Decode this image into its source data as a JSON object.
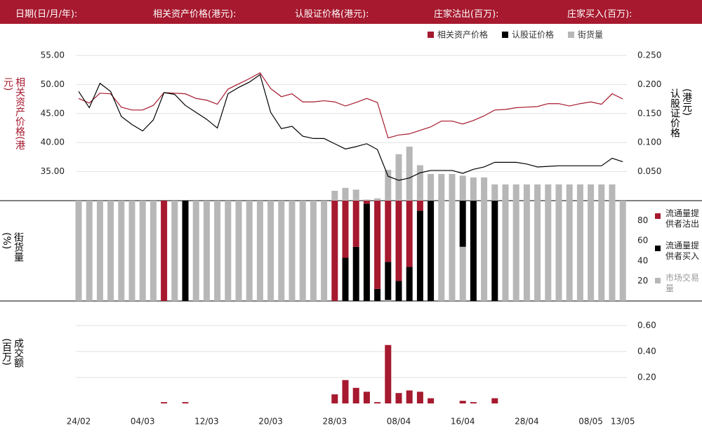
{
  "header": {
    "labels": [
      "日期(日/月/年):",
      "相关资产价格(港元):",
      "认股证价格(港元):",
      "庄家沽出(百万):",
      "庄家买入(百万):"
    ]
  },
  "chart_data": [
    {
      "type": "line",
      "ylabel": "相关资产价格(港元)",
      "y2label": "认股证价格(港元)",
      "legend": "top-right",
      "grid": true,
      "ylim": [
        30,
        55
      ],
      "yticks": [
        {
          "value": 35,
          "label": "35.00"
        },
        {
          "value": 40,
          "label": "40.00"
        },
        {
          "value": 45,
          "label": "45.00"
        },
        {
          "value": 50,
          "label": "50.00"
        },
        {
          "value": 55,
          "label": "55.00"
        }
      ],
      "y2lim": [
        0,
        0.25
      ],
      "y2ticks": [
        {
          "value": 0.05,
          "label": "0.050"
        },
        {
          "value": 0.1,
          "label": "0.100"
        },
        {
          "value": 0.15,
          "label": "0.150"
        },
        {
          "value": 0.2,
          "label": "0.200"
        },
        {
          "value": 0.25,
          "label": "0.250"
        }
      ],
      "series": [
        {
          "name": "相关资产价格",
          "color": "#a6192e",
          "values": [
            47.6,
            46.8,
            48.5,
            48.4,
            46.1,
            45.6,
            45.6,
            46.4,
            48.6,
            48.5,
            48.4,
            47.6,
            47.3,
            46.6,
            49.2,
            50.1,
            51.0,
            52.0,
            49.3,
            47.9,
            48.4,
            47.0,
            47.0,
            47.2,
            47.0,
            46.3,
            46.9,
            47.6,
            46.9,
            40.8,
            41.3,
            41.5,
            42.1,
            42.7,
            43.7,
            43.7,
            43.2,
            43.8,
            44.6,
            45.6,
            45.7,
            46.0,
            46.1,
            46.2,
            46.7,
            46.7,
            46.3,
            46.7,
            47.0,
            46.6,
            48.4,
            47.5
          ]
        },
        {
          "name": "认股证价格",
          "color": "#000000",
          "axis": "y2",
          "values": [
            0.188,
            0.16,
            0.202,
            0.188,
            0.145,
            0.131,
            0.12,
            0.139,
            0.186,
            0.183,
            0.164,
            0.152,
            0.14,
            0.125,
            0.184,
            0.195,
            0.204,
            0.217,
            0.152,
            0.124,
            0.128,
            0.111,
            0.107,
            0.107,
            0.098,
            0.089,
            0.093,
            0.098,
            0.088,
            0.042,
            0.035,
            0.039,
            0.048,
            0.052,
            0.052,
            0.052,
            0.047,
            0.054,
            0.058,
            0.066,
            0.066,
            0.066,
            0.063,
            0.058,
            0.059,
            0.06,
            0.06,
            0.06,
            0.06,
            0.06,
            0.073,
            0.067
          ]
        },
        {
          "name": "街货量",
          "color": "#b7b7b7",
          "type": "bar",
          "axis": "y2",
          "values": [
            null,
            null,
            null,
            null,
            null,
            null,
            null,
            null,
            null,
            null,
            null,
            null,
            null,
            null,
            null,
            null,
            null,
            null,
            null,
            null,
            null,
            null,
            null,
            null,
            0.017,
            0.022,
            0.019,
            0.002,
            0.004,
            0.053,
            0.08,
            0.093,
            0.061,
            0.046,
            0.046,
            0.046,
            0.043,
            0.04,
            0.04,
            0.028,
            0.028,
            0.028,
            0.028,
            0.028,
            0.028,
            0.028,
            0.028,
            0.028,
            0.028,
            0.028,
            0.028,
            null
          ]
        }
      ]
    },
    {
      "type": "stacked_bar",
      "ylabel": "街货量(%)",
      "legend": "right",
      "y2lim": [
        0,
        100
      ],
      "y2ticks": [
        20,
        40,
        60,
        80
      ],
      "series": [
        {
          "name": "流通量提供者沽出",
          "color": "#a6192e",
          "values": [
            0,
            0,
            0,
            0,
            0,
            0,
            0,
            0,
            100,
            0,
            0,
            0,
            0,
            0,
            0,
            0,
            0,
            0,
            0,
            0,
            0,
            0,
            0,
            0,
            100,
            57,
            46,
            3,
            88,
            61,
            80,
            66,
            10,
            0,
            0,
            0,
            0,
            0,
            0,
            0,
            0,
            0,
            0,
            0,
            0,
            0,
            0,
            0,
            0,
            0,
            0,
            0
          ]
        },
        {
          "name": "流通量提供者买入",
          "color": "#000000",
          "values": [
            0,
            0,
            0,
            0,
            0,
            0,
            0,
            0,
            0,
            0,
            100,
            0,
            0,
            0,
            0,
            0,
            0,
            0,
            0,
            0,
            0,
            0,
            0,
            0,
            0,
            43,
            54,
            97,
            12,
            38,
            20,
            34,
            90,
            100,
            0,
            0,
            46,
            100,
            0,
            100,
            0,
            0,
            0,
            0,
            0,
            0,
            0,
            0,
            0,
            0,
            0,
            0
          ]
        },
        {
          "name": "市场交易量",
          "color": "#b7b7b7",
          "values": [
            100,
            100,
            100,
            100,
            100,
            100,
            100,
            100,
            0,
            100,
            0,
            100,
            100,
            100,
            100,
            100,
            100,
            100,
            100,
            100,
            100,
            100,
            100,
            100,
            0,
            0,
            0,
            0,
            0,
            1,
            0,
            0,
            0,
            0,
            100,
            100,
            54,
            0,
            100,
            0,
            100,
            100,
            100,
            100,
            100,
            100,
            100,
            100,
            100,
            100,
            100,
            100
          ]
        }
      ]
    },
    {
      "type": "bar",
      "ylabel": "成交额(百万)",
      "grid": true,
      "color": "#a6192e",
      "y2lim": [
        0,
        0.7
      ],
      "y2ticks": [
        {
          "value": 0.2,
          "label": "0.20"
        },
        {
          "value": 0.4,
          "label": "0.40"
        },
        {
          "value": 0.6,
          "label": "0.60"
        }
      ],
      "categories": [
        "24/02",
        null,
        null,
        null,
        null,
        null,
        "04/03",
        null,
        null,
        null,
        null,
        null,
        "12/03",
        null,
        null,
        null,
        null,
        null,
        "20/03",
        null,
        null,
        null,
        null,
        null,
        "28/03",
        null,
        null,
        null,
        null,
        null,
        "08/04",
        null,
        null,
        null,
        null,
        null,
        "16/04",
        null,
        null,
        null,
        null,
        null,
        "28/04",
        null,
        null,
        null,
        null,
        null,
        "08/05",
        null,
        null,
        "13/05"
      ],
      "values": [
        0,
        0,
        0,
        0,
        0,
        0,
        0,
        0,
        0.01,
        0,
        0.01,
        0,
        0,
        0,
        0,
        0,
        0,
        0,
        0,
        0,
        0,
        0,
        0,
        0,
        0.07,
        0.18,
        0.12,
        0.09,
        0.01,
        0.45,
        0.08,
        0.1,
        0.09,
        0.04,
        0,
        0,
        0.02,
        0.01,
        0,
        0.04,
        0,
        0,
        0,
        0,
        0,
        0,
        0,
        0,
        0,
        0,
        0,
        0
      ]
    }
  ]
}
